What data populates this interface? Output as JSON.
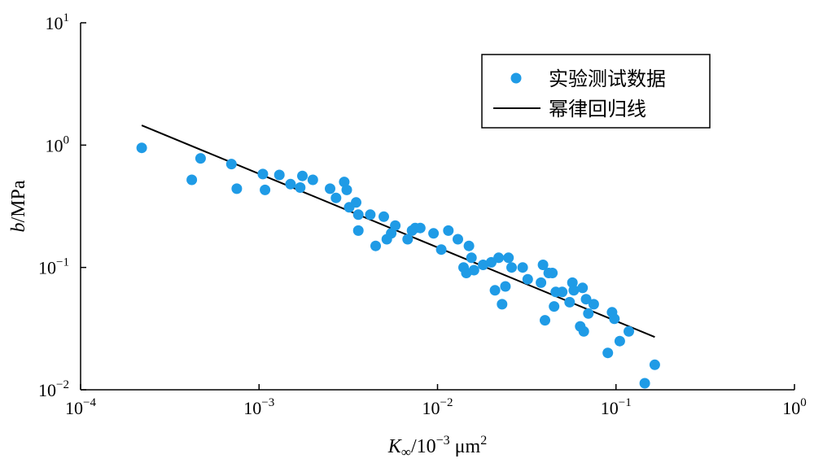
{
  "chart_data": {
    "type": "scatter",
    "x_scale": "log",
    "y_scale": "log",
    "xlim": [
      0.0001,
      1
    ],
    "ylim": [
      0.01,
      10
    ],
    "x_ticks": [
      0.0001,
      0.001,
      0.01,
      0.1,
      1
    ],
    "x_tick_labels": [
      {
        "base": "10",
        "exp": "−4"
      },
      {
        "base": "10",
        "exp": "−3"
      },
      {
        "base": "10",
        "exp": "−2"
      },
      {
        "base": "10",
        "exp": "−1"
      },
      {
        "base": "10",
        "exp": "0"
      }
    ],
    "y_ticks": [
      0.01,
      0.1,
      1,
      10
    ],
    "y_tick_labels": [
      {
        "base": "10",
        "exp": "−2"
      },
      {
        "base": "10",
        "exp": "−1"
      },
      {
        "base": "10",
        "exp": "0"
      },
      {
        "base": "10",
        "exp": "1"
      }
    ],
    "xlabel": {
      "var": "K",
      "sub": "∞",
      "mid": "/10",
      "exp": "−3",
      "unit": " μm",
      "unit_exp": "2"
    },
    "ylabel": {
      "var": "b",
      "unit": "/MPa"
    },
    "grid": false,
    "legend_position": "top-right",
    "colors": {
      "points": "#1f9be6",
      "line": "#000000"
    },
    "series": [
      {
        "name": "实验测试数据",
        "kind": "scatter",
        "points": [
          [
            0.00022,
            0.95
          ],
          [
            0.00042,
            0.52
          ],
          [
            0.00047,
            0.78
          ],
          [
            0.0007,
            0.7
          ],
          [
            0.00075,
            0.44
          ],
          [
            0.00105,
            0.58
          ],
          [
            0.00108,
            0.43
          ],
          [
            0.0013,
            0.57
          ],
          [
            0.0015,
            0.48
          ],
          [
            0.0017,
            0.45
          ],
          [
            0.00175,
            0.56
          ],
          [
            0.002,
            0.52
          ],
          [
            0.0025,
            0.44
          ],
          [
            0.0027,
            0.37
          ],
          [
            0.003,
            0.5
          ],
          [
            0.0031,
            0.43
          ],
          [
            0.0032,
            0.31
          ],
          [
            0.0035,
            0.34
          ],
          [
            0.0036,
            0.27
          ],
          [
            0.0036,
            0.2
          ],
          [
            0.0042,
            0.27
          ],
          [
            0.0045,
            0.15
          ],
          [
            0.005,
            0.26
          ],
          [
            0.0052,
            0.17
          ],
          [
            0.0055,
            0.19
          ],
          [
            0.0058,
            0.22
          ],
          [
            0.0068,
            0.17
          ],
          [
            0.0072,
            0.2
          ],
          [
            0.0075,
            0.21
          ],
          [
            0.008,
            0.21
          ],
          [
            0.0095,
            0.19
          ],
          [
            0.0105,
            0.14
          ],
          [
            0.0115,
            0.2
          ],
          [
            0.013,
            0.17
          ],
          [
            0.014,
            0.1
          ],
          [
            0.0145,
            0.09
          ],
          [
            0.015,
            0.15
          ],
          [
            0.0155,
            0.12
          ],
          [
            0.016,
            0.095
          ],
          [
            0.018,
            0.105
          ],
          [
            0.02,
            0.11
          ],
          [
            0.021,
            0.065
          ],
          [
            0.022,
            0.12
          ],
          [
            0.023,
            0.05
          ],
          [
            0.024,
            0.07
          ],
          [
            0.025,
            0.12
          ],
          [
            0.026,
            0.1
          ],
          [
            0.03,
            0.1
          ],
          [
            0.032,
            0.08
          ],
          [
            0.038,
            0.075
          ],
          [
            0.039,
            0.105
          ],
          [
            0.04,
            0.037
          ],
          [
            0.042,
            0.09
          ],
          [
            0.044,
            0.09
          ],
          [
            0.045,
            0.048
          ],
          [
            0.046,
            0.063
          ],
          [
            0.05,
            0.063
          ],
          [
            0.055,
            0.052
          ],
          [
            0.057,
            0.075
          ],
          [
            0.058,
            0.065
          ],
          [
            0.063,
            0.033
          ],
          [
            0.065,
            0.068
          ],
          [
            0.066,
            0.03
          ],
          [
            0.068,
            0.055
          ],
          [
            0.07,
            0.042
          ],
          [
            0.075,
            0.05
          ],
          [
            0.09,
            0.02
          ],
          [
            0.095,
            0.043
          ],
          [
            0.098,
            0.038
          ],
          [
            0.105,
            0.025
          ],
          [
            0.118,
            0.03
          ],
          [
            0.145,
            0.0113
          ],
          [
            0.165,
            0.016
          ]
        ]
      },
      {
        "name": "幂律回归线",
        "kind": "line",
        "points": [
          [
            0.00022,
            1.45
          ],
          [
            0.165,
            0.027
          ]
        ]
      }
    ]
  }
}
